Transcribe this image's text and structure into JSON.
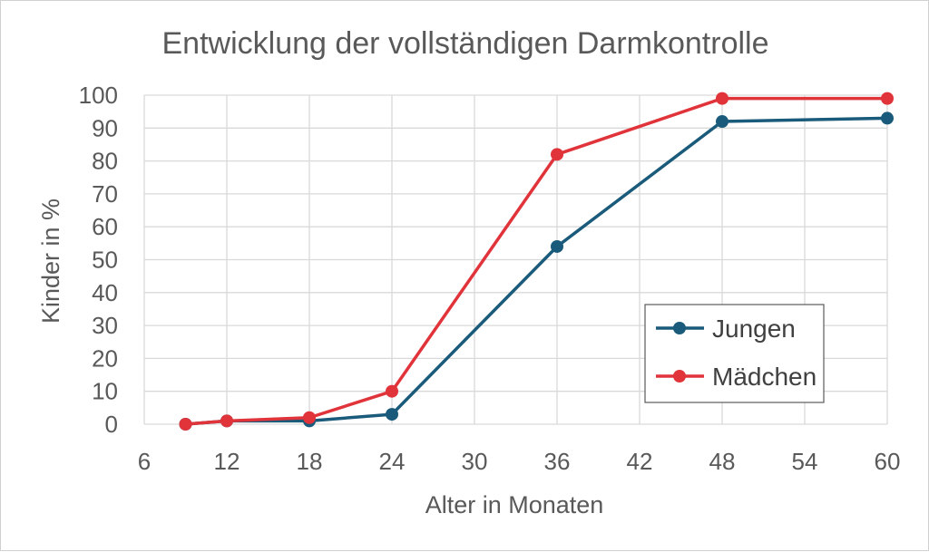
{
  "chart_data": {
    "type": "line",
    "title": "Entwicklung der vollständigen Darmkontrolle",
    "xlabel": "Alter in Monaten",
    "ylabel": "Kinder in %",
    "xlim": [
      6,
      60
    ],
    "ylim": [
      0,
      100
    ],
    "xticks": [
      "6",
      "12",
      "18",
      "24",
      "30",
      "36",
      "42",
      "48",
      "54",
      "60"
    ],
    "yticks": [
      "0",
      "10",
      "20",
      "30",
      "40",
      "50",
      "60",
      "70",
      "80",
      "90",
      "100"
    ],
    "grid": true,
    "legend_position": "bottom-right",
    "series": [
      {
        "name": "Jungen",
        "color": "#1a5a7a",
        "x": [
          9,
          12,
          18,
          24,
          36,
          48,
          60
        ],
        "y": [
          0,
          1,
          1,
          3,
          54,
          92,
          93
        ]
      },
      {
        "name": "Mädchen",
        "color": "#e0333a",
        "x": [
          9,
          12,
          18,
          24,
          36,
          48,
          60
        ],
        "y": [
          0,
          1,
          2,
          10,
          82,
          99,
          99
        ]
      }
    ]
  }
}
